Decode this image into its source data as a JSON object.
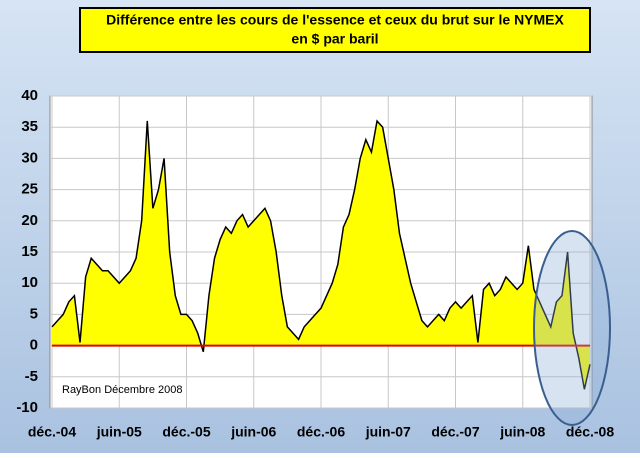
{
  "chart_data": {
    "type": "area",
    "title": [
      "Différence entre les cours de l'essence et ceux du brut sur le NYMEX",
      "en $ par baril"
    ],
    "annotation": "RayBon Décembre 2008",
    "categories": [
      "déc.-04",
      null,
      null,
      null,
      null,
      null,
      null,
      null,
      null,
      null,
      null,
      null,
      "juin-05",
      null,
      null,
      null,
      null,
      null,
      null,
      null,
      null,
      null,
      null,
      null,
      "déc.-05",
      null,
      null,
      null,
      null,
      null,
      null,
      null,
      null,
      null,
      null,
      null,
      "juin-06",
      null,
      null,
      null,
      null,
      null,
      null,
      null,
      null,
      null,
      null,
      null,
      "déc.-06",
      null,
      null,
      null,
      null,
      null,
      null,
      null,
      null,
      null,
      null,
      null,
      "juin-07",
      null,
      null,
      null,
      null,
      null,
      null,
      null,
      null,
      null,
      null,
      null,
      "déc.-07",
      null,
      null,
      null,
      null,
      null,
      null,
      null,
      null,
      null,
      null,
      null,
      "juin-08",
      null,
      null,
      null,
      null,
      null,
      null,
      null,
      null,
      null,
      null,
      null,
      "déc.-08"
    ],
    "values": [
      3,
      4,
      5,
      7,
      8,
      0.5,
      11,
      14,
      13,
      12,
      12,
      11,
      10,
      11,
      12,
      14,
      20,
      36,
      22,
      25,
      30,
      15,
      8,
      5,
      5,
      4,
      2,
      -1,
      8,
      14,
      17,
      19,
      18,
      20,
      21,
      19,
      20,
      21,
      22,
      20,
      15,
      8,
      3,
      2,
      1,
      3,
      4,
      5,
      6,
      8,
      10,
      13,
      19,
      21,
      25,
      30,
      33,
      31,
      36,
      35,
      30,
      25,
      18,
      14,
      10,
      7,
      4,
      3,
      4,
      5,
      4,
      6,
      7,
      6,
      7,
      8,
      0.5,
      9,
      10,
      8,
      9,
      11,
      10,
      9,
      10,
      16,
      9,
      7,
      5,
      3,
      7,
      8,
      15,
      2,
      -2,
      -7,
      -3
    ],
    "color": "#ffff00",
    "line_color": "#000000",
    "ylim": [
      -10,
      40
    ],
    "yticks": [
      -10,
      -5,
      0,
      5,
      10,
      15,
      20,
      25,
      30,
      35,
      40
    ],
    "grid": true
  }
}
